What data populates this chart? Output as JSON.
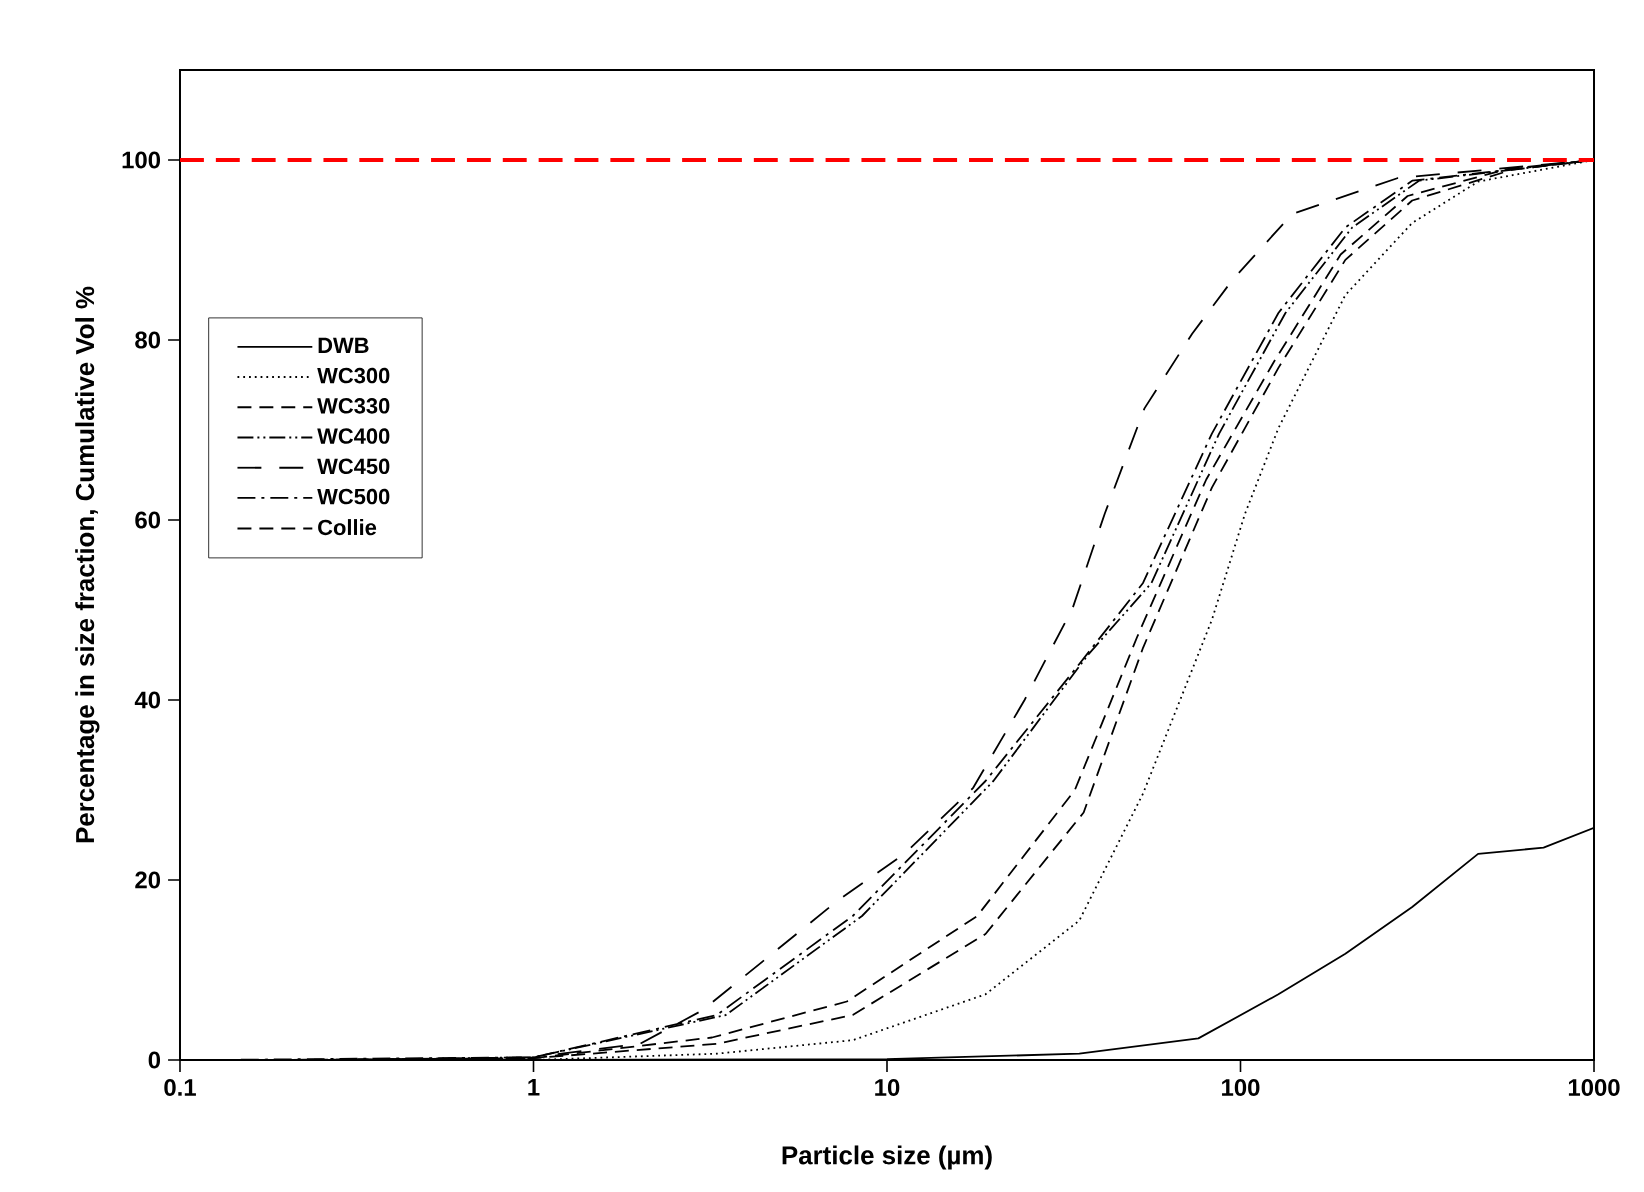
{
  "chart_data": {
    "type": "line",
    "xlabel": "Particle size (µm)",
    "ylabel": "Percentage in size fraction, Cumulative Vol %",
    "log": "x",
    "xlim": [
      0.1,
      1000
    ],
    "xticks": [
      0.1,
      1,
      10,
      100,
      1000
    ],
    "ylim": [
      0,
      110
    ],
    "yticks": [
      0,
      20,
      40,
      60,
      80,
      100
    ],
    "grid": false,
    "legend": "top left",
    "marker": "none",
    "ref_lines": [
      {
        "axis": "y",
        "value": 100,
        "color": "#ff0000",
        "line_style": "dashed"
      }
    ],
    "series": [
      {
        "name": "DWB",
        "color": "#000000",
        "line_style": "solid",
        "x": [
          0.1,
          1,
          10,
          35,
          76,
          128,
          198,
          306,
          470,
          720,
          1000
        ],
        "values": [
          0,
          0,
          0.1,
          0.7,
          2.4,
          7.3,
          11.8,
          17,
          22.9,
          23.6,
          25.8
        ]
      },
      {
        "name": "WC300",
        "color": "#000000",
        "line_style": "dotted",
        "x": [
          0.15,
          1,
          3.3,
          8,
          19,
          35,
          53,
          83,
          103,
          128,
          198,
          306,
          470,
          1000
        ],
        "values": [
          0,
          0,
          0.7,
          2.2,
          7.3,
          15.5,
          29.6,
          48.9,
          60.7,
          70.2,
          85,
          93,
          97.6,
          100
        ]
      },
      {
        "name": "WC330",
        "color": "#000000",
        "line_style": "dashed",
        "x": [
          0.2,
          1,
          3.3,
          8,
          19,
          36,
          53,
          83,
          128,
          198,
          306,
          585,
          1000
        ],
        "values": [
          0,
          0.2,
          1.8,
          5,
          14,
          27.5,
          45.8,
          63.6,
          76.9,
          88.9,
          95.5,
          98.9,
          100
        ]
      },
      {
        "name": "WC400",
        "color": "#000000",
        "line_style": "dashdotdot",
        "x": [
          0.25,
          1,
          3.5,
          8.5,
          20,
          37,
          56,
          87,
          134,
          207,
          320,
          1000
        ],
        "values": [
          0,
          0.3,
          5,
          16,
          31,
          45,
          53,
          69.6,
          83,
          92.5,
          97.7,
          100
        ]
      },
      {
        "name": "WC450",
        "color": "#000000",
        "line_style": "longdashed",
        "x": [
          0.3,
          1,
          2,
          3,
          7.3,
          11.2,
          17.5,
          24.5,
          33.5,
          41.3,
          53.5,
          73,
          95,
          140,
          279,
          1000
        ],
        "values": [
          0,
          0.3,
          1.8,
          5.5,
          17.8,
          22.9,
          30.2,
          40,
          50.2,
          60.7,
          72.4,
          80.7,
          86.7,
          94,
          98,
          100
        ]
      },
      {
        "name": "WC500",
        "color": "#000000",
        "line_style": "dashdot",
        "x": [
          0.12,
          1,
          3.3,
          8,
          19,
          35,
          53,
          83,
          128,
          198,
          306,
          1000
        ],
        "values": [
          0,
          0.3,
          5,
          16,
          31,
          44,
          53,
          69.6,
          83,
          92.5,
          97.7,
          100
        ]
      },
      {
        "name": "Collie",
        "color": "#000000",
        "line_style": "dashed",
        "x": [
          0.18,
          1,
          3.2,
          7.7,
          18,
          34,
          51,
          80,
          124,
          192,
          297,
          570,
          1000
        ],
        "values": [
          0,
          0.2,
          2.5,
          6.5,
          16,
          30,
          47,
          64.5,
          77.5,
          89.5,
          96,
          99,
          100
        ]
      }
    ]
  }
}
